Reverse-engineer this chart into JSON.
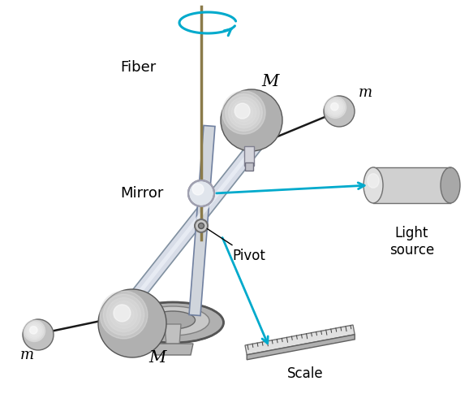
{
  "background_color": "#ffffff",
  "fiber_color": "#8B7B4A",
  "arrow_color": "#00AACC",
  "text_color": "#000000",
  "label_fiber": "Fiber",
  "label_mirror": "Mirror",
  "label_pivot": "Pivot",
  "label_M_top": "M",
  "label_M_bot": "M",
  "label_m_top": "m",
  "label_m_bot": "m",
  "label_light": "Light\nsource",
  "label_scale": "Scale",
  "figsize": [
    5.78,
    5.01
  ],
  "dpi": 100
}
